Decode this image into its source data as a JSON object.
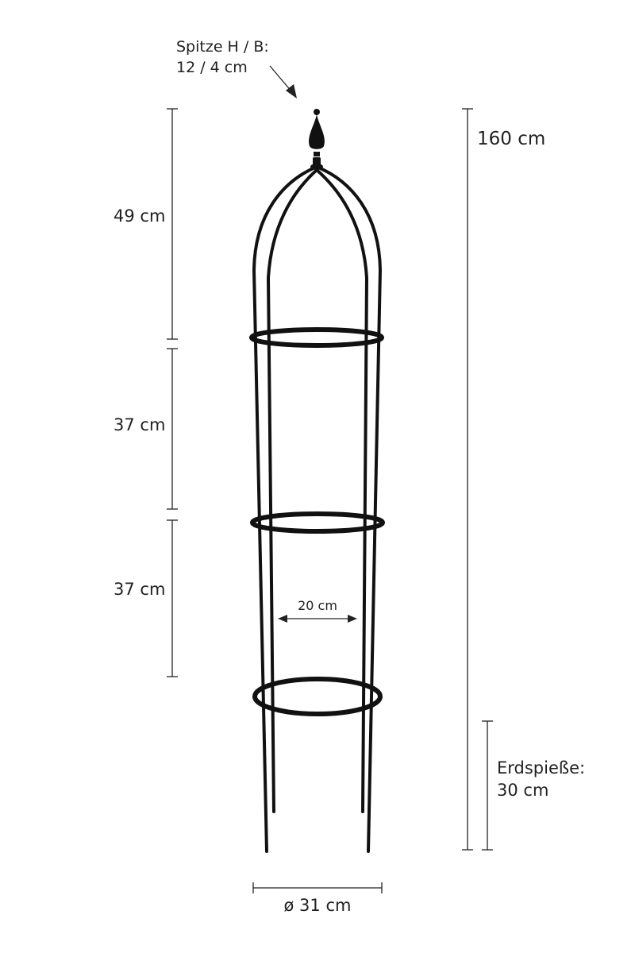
{
  "labels": {
    "tip_line1": "Spitze H / B:",
    "tip_line2": "12 / 4 cm",
    "total_height": "160 cm",
    "segment_top": "49 cm",
    "segment_middle": "37 cm",
    "segment_bottom": "37 cm",
    "inner_width": "20 cm",
    "ground_spikes_line1": "Erdspieße:",
    "ground_spikes_line2": "30 cm",
    "diameter": "ø 31 cm"
  },
  "colors": {
    "metal": "#111111",
    "dimension_lines": "#222222",
    "background": "#ffffff"
  }
}
